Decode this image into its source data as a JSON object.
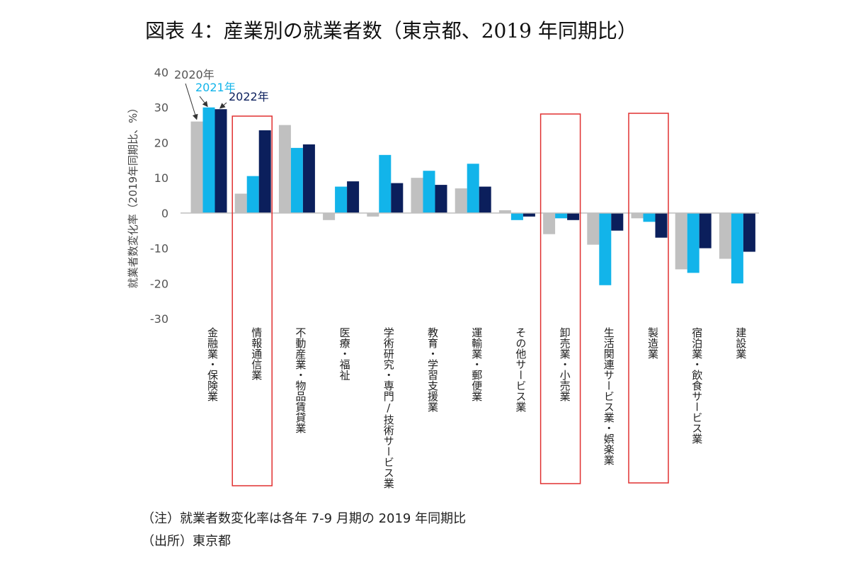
{
  "chart_data": {
    "type": "bar",
    "title": "図表 4：産業別の就業者数（東京都、2019 年同期比）",
    "ylabel": "就業者数変化率（2019年同期比、%）",
    "ylim": [
      -30,
      40
    ],
    "yticks": [
      40,
      30,
      20,
      10,
      0,
      -10,
      -20,
      -30
    ],
    "categories": [
      "金融業・保険業",
      "情報通信業",
      "不動産業・物品賃貸業",
      "医療・福祉",
      "学術研究・専門/技術サービス業",
      "教育・学習支援業",
      "運輸業・郵便業",
      "その他サービス業",
      "卸売業・小売業",
      "生活関連サービス業・娯楽業",
      "製造業",
      "宿泊業・飲食サービス業",
      "建設業"
    ],
    "series": [
      {
        "name": "2020年",
        "color": "#c0c0c0",
        "values": [
          26,
          5.5,
          25,
          -2,
          -1,
          10,
          7,
          0.8,
          -6,
          -9,
          -1.5,
          -16,
          -13
        ]
      },
      {
        "name": "2021年",
        "color": "#12b4ea",
        "values": [
          30,
          10.5,
          18.5,
          7.5,
          16.5,
          12,
          14,
          -2,
          -1.5,
          -20.5,
          -2.5,
          -17,
          -20
        ]
      },
      {
        "name": "2022年",
        "color": "#0b1f5c",
        "values": [
          29.5,
          23.5,
          19.5,
          9,
          8.5,
          8,
          7.5,
          -1,
          -2,
          -5,
          -7,
          -10,
          -11
        ]
      }
    ],
    "highlighted": [
      "情報通信業",
      "卸売業・小売業",
      "製造業"
    ],
    "highlight_color": "#e03030",
    "legend_placement": "annotations above first category",
    "grid": false
  },
  "notes": {
    "note": "（注）就業者数変化率は各年 7-9 月期の 2019 年同期比",
    "source": "（出所）東京都"
  }
}
